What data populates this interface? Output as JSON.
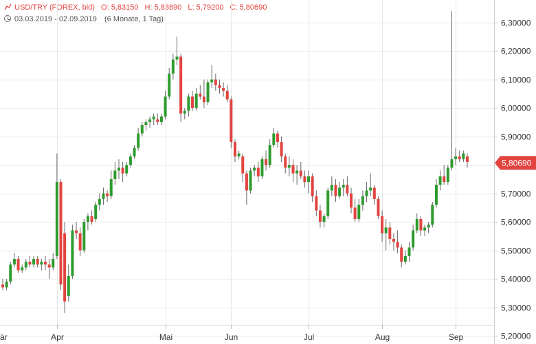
{
  "header": {
    "symbol": "USD/TRY (FOREX, bid)",
    "open_label": "O:",
    "open": "5,83150",
    "high_label": "H:",
    "high": "5,83890",
    "low_label": "L:",
    "low": "5,79200",
    "close_label": "C:",
    "close": "5,80690",
    "date_range": "03.03.2019 - 02.09.2019",
    "period": "(6 Monate, 1 Tag)"
  },
  "colors": {
    "up": "#2e9b2e",
    "down": "#e2443f",
    "grid": "#e6e6e6",
    "text": "#333333",
    "tag": "#e2443f"
  },
  "chart_data": {
    "type": "candlestick",
    "ylim": [
      5.2,
      6.35
    ],
    "y_ticks": [
      "5,20000",
      "5,30000",
      "5,40000",
      "5,50000",
      "5,60000",
      "5,70000",
      "5,80000",
      "5,90000",
      "6,00000",
      "6,10000",
      "6,20000",
      "6,30000"
    ],
    "x_labels": [
      "är",
      "Apr",
      "Mai",
      "Jun",
      "Jul",
      "Aug",
      "Sep"
    ],
    "last_price": "5,80690",
    "candles": [
      [
        5.38,
        5.4,
        5.36,
        5.37
      ],
      [
        5.37,
        5.4,
        5.36,
        5.39
      ],
      [
        5.39,
        5.46,
        5.38,
        5.45
      ],
      [
        5.45,
        5.49,
        5.44,
        5.47
      ],
      [
        5.47,
        5.48,
        5.42,
        5.43
      ],
      [
        5.43,
        5.45,
        5.42,
        5.44
      ],
      [
        5.44,
        5.47,
        5.43,
        5.46
      ],
      [
        5.46,
        5.48,
        5.44,
        5.45
      ],
      [
        5.45,
        5.48,
        5.44,
        5.47
      ],
      [
        5.47,
        5.48,
        5.44,
        5.45
      ],
      [
        5.45,
        5.47,
        5.43,
        5.46
      ],
      [
        5.46,
        5.48,
        5.43,
        5.45
      ],
      [
        5.45,
        5.47,
        5.4,
        5.44
      ],
      [
        5.44,
        5.49,
        5.43,
        5.47
      ],
      [
        5.48,
        5.84,
        5.47,
        5.74
      ],
      [
        5.74,
        5.75,
        5.36,
        5.38
      ],
      [
        5.56,
        5.6,
        5.28,
        5.32
      ],
      [
        5.34,
        5.45,
        5.32,
        5.41
      ],
      [
        5.41,
        5.59,
        5.4,
        5.57
      ],
      [
        5.57,
        5.6,
        5.54,
        5.56
      ],
      [
        5.56,
        5.58,
        5.48,
        5.5
      ],
      [
        5.5,
        5.61,
        5.49,
        5.6
      ],
      [
        5.6,
        5.63,
        5.57,
        5.62
      ],
      [
        5.62,
        5.64,
        5.59,
        5.6
      ],
      [
        5.61,
        5.67,
        5.6,
        5.66
      ],
      [
        5.66,
        5.7,
        5.64,
        5.68
      ],
      [
        5.68,
        5.72,
        5.66,
        5.7
      ],
      [
        5.7,
        5.71,
        5.67,
        5.69
      ],
      [
        5.69,
        5.78,
        5.68,
        5.75
      ],
      [
        5.75,
        5.81,
        5.73,
        5.78
      ],
      [
        5.78,
        5.82,
        5.75,
        5.79
      ],
      [
        5.79,
        5.81,
        5.74,
        5.77
      ],
      [
        5.77,
        5.81,
        5.76,
        5.8
      ],
      [
        5.8,
        5.84,
        5.79,
        5.83
      ],
      [
        5.83,
        5.87,
        5.82,
        5.86
      ],
      [
        5.86,
        5.93,
        5.85,
        5.91
      ],
      [
        5.91,
        5.95,
        5.9,
        5.94
      ],
      [
        5.94,
        5.96,
        5.92,
        5.95
      ],
      [
        5.95,
        5.97,
        5.93,
        5.96
      ],
      [
        5.96,
        5.98,
        5.94,
        5.97
      ],
      [
        5.96,
        5.98,
        5.94,
        5.95
      ],
      [
        5.95,
        5.98,
        5.94,
        5.97
      ],
      [
        5.97,
        6.06,
        5.96,
        6.04
      ],
      [
        6.04,
        6.14,
        6.03,
        6.12
      ],
      [
        6.12,
        6.19,
        6.1,
        6.17
      ],
      [
        6.17,
        6.25,
        6.15,
        6.18
      ],
      [
        6.18,
        6.19,
        5.95,
        5.98
      ],
      [
        5.98,
        6.0,
        5.96,
        5.99
      ],
      [
        5.99,
        6.05,
        5.97,
        6.04
      ],
      [
        6.04,
        6.06,
        5.99,
        6.0
      ],
      [
        6.0,
        6.07,
        5.99,
        6.05
      ],
      [
        6.05,
        6.08,
        6.03,
        6.04
      ],
      [
        6.04,
        6.1,
        6.0,
        6.02
      ],
      [
        6.02,
        6.1,
        6.01,
        6.09
      ],
      [
        6.09,
        6.15,
        6.07,
        6.1
      ],
      [
        6.1,
        6.12,
        6.06,
        6.08
      ],
      [
        6.08,
        6.1,
        6.05,
        6.07
      ],
      [
        6.07,
        6.09,
        6.04,
        6.06
      ],
      [
        6.06,
        6.08,
        6.02,
        6.03
      ],
      [
        6.03,
        6.04,
        5.86,
        5.88
      ],
      [
        5.88,
        5.89,
        5.81,
        5.83
      ],
      [
        5.83,
        5.85,
        5.82,
        5.84
      ],
      [
        5.83,
        5.84,
        5.74,
        5.77
      ],
      [
        5.77,
        5.78,
        5.66,
        5.71
      ],
      [
        5.71,
        5.79,
        5.7,
        5.78
      ],
      [
        5.78,
        5.8,
        5.76,
        5.79
      ],
      [
        5.79,
        5.81,
        5.74,
        5.76
      ],
      [
        5.76,
        5.83,
        5.75,
        5.82
      ],
      [
        5.82,
        5.85,
        5.78,
        5.8
      ],
      [
        5.8,
        5.89,
        5.79,
        5.87
      ],
      [
        5.87,
        5.93,
        5.86,
        5.91
      ],
      [
        5.91,
        5.92,
        5.86,
        5.88
      ],
      [
        5.88,
        5.9,
        5.81,
        5.83
      ],
      [
        5.83,
        5.84,
        5.77,
        5.79
      ],
      [
        5.79,
        5.83,
        5.76,
        5.8
      ],
      [
        5.8,
        5.82,
        5.74,
        5.77
      ],
      [
        5.77,
        5.8,
        5.73,
        5.78
      ],
      [
        5.78,
        5.81,
        5.75,
        5.76
      ],
      [
        5.76,
        5.78,
        5.72,
        5.74
      ],
      [
        5.74,
        5.78,
        5.7,
        5.76
      ],
      [
        5.76,
        5.77,
        5.67,
        5.69
      ],
      [
        5.69,
        5.71,
        5.62,
        5.64
      ],
      [
        5.64,
        5.66,
        5.58,
        5.6
      ],
      [
        5.6,
        5.63,
        5.58,
        5.62
      ],
      [
        5.62,
        5.72,
        5.61,
        5.71
      ],
      [
        5.71,
        5.76,
        5.69,
        5.73
      ],
      [
        5.73,
        5.75,
        5.67,
        5.69
      ],
      [
        5.69,
        5.74,
        5.68,
        5.72
      ],
      [
        5.72,
        5.75,
        5.69,
        5.73
      ],
      [
        5.73,
        5.76,
        5.69,
        5.7
      ],
      [
        5.7,
        5.72,
        5.63,
        5.65
      ],
      [
        5.65,
        5.68,
        5.6,
        5.61
      ],
      [
        5.61,
        5.68,
        5.6,
        5.66
      ],
      [
        5.66,
        5.71,
        5.64,
        5.69
      ],
      [
        5.69,
        5.74,
        5.67,
        5.71
      ],
      [
        5.71,
        5.77,
        5.69,
        5.72
      ],
      [
        5.72,
        5.73,
        5.66,
        5.68
      ],
      [
        5.68,
        5.69,
        5.61,
        5.62
      ],
      [
        5.62,
        5.64,
        5.53,
        5.56
      ],
      [
        5.56,
        5.61,
        5.5,
        5.58
      ],
      [
        5.58,
        5.6,
        5.52,
        5.54
      ],
      [
        5.54,
        5.56,
        5.5,
        5.53
      ],
      [
        5.53,
        5.57,
        5.49,
        5.51
      ],
      [
        5.51,
        5.52,
        5.44,
        5.46
      ],
      [
        5.46,
        5.5,
        5.45,
        5.48
      ],
      [
        5.48,
        5.53,
        5.46,
        5.51
      ],
      [
        5.51,
        5.59,
        5.5,
        5.57
      ],
      [
        5.57,
        5.63,
        5.56,
        5.61
      ],
      [
        5.61,
        5.62,
        5.55,
        5.57
      ],
      [
        5.57,
        5.59,
        5.55,
        5.58
      ],
      [
        5.58,
        5.6,
        5.56,
        5.59
      ],
      [
        5.59,
        5.67,
        5.58,
        5.66
      ],
      [
        5.66,
        5.75,
        5.65,
        5.73
      ],
      [
        5.73,
        5.78,
        5.71,
        5.76
      ],
      [
        5.76,
        5.8,
        5.73,
        5.74
      ],
      [
        5.74,
        5.8,
        5.73,
        5.79
      ],
      [
        5.79,
        6.34,
        5.78,
        5.82
      ],
      [
        5.82,
        5.86,
        5.8,
        5.83
      ],
      [
        5.83,
        5.85,
        5.81,
        5.82
      ],
      [
        5.82,
        5.85,
        5.81,
        5.84
      ],
      [
        5.83,
        5.84,
        5.79,
        5.81
      ]
    ]
  }
}
